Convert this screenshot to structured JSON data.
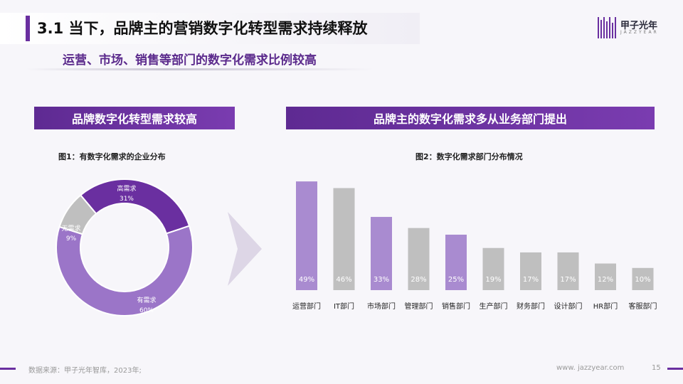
{
  "header": {
    "title": "3.1 当下，品牌主的营销数字化转型需求持续释放",
    "subtitle": "运营、市场、销售等部门的数字化需求比例较高"
  },
  "logo": {
    "name": "甲子光年",
    "tagline": "JAZZYEAR"
  },
  "left_panel": {
    "header": "品牌数字化转型需求较高",
    "figure_title": "图1：有数字化需求的企业分布"
  },
  "right_panel": {
    "header": "品牌主的数字化需求多从业务部门提出",
    "figure_title": "图2：数字化需求部门分布情况"
  },
  "colors": {
    "accent": "#6a2fa0",
    "dark_purple": "#6a2fa0",
    "mid_purple": "#9b75c8",
    "light_purple": "#a98bd0",
    "gray": "#bfbfbf"
  },
  "chart_data": [
    {
      "type": "pie",
      "variant": "donut",
      "title": "图1：有数字化需求的企业分布",
      "slices": [
        {
          "label": "高需求",
          "value": 31,
          "display": "31%",
          "color": "#6a2fa0"
        },
        {
          "label": "有需求",
          "value": 60,
          "display": "60%",
          "color": "#9b75c8"
        },
        {
          "label": "无需求",
          "value": 9,
          "display": "9%",
          "color": "#bfbfbf"
        }
      ]
    },
    {
      "type": "bar",
      "title": "图2：数字化需求部门分布情况",
      "categories": [
        "运营部门",
        "IT部门",
        "市场部门",
        "管理部门",
        "销售部门",
        "生产部门",
        "财务部门",
        "设计部门",
        "HR部门",
        "客服部门"
      ],
      "values": [
        49,
        46,
        33,
        28,
        25,
        19,
        17,
        17,
        12,
        10
      ],
      "labels": [
        "49%",
        "46%",
        "33%",
        "28%",
        "25%",
        "19%",
        "17%",
        "17%",
        "12%",
        "10%"
      ],
      "highlighted": [
        true,
        false,
        true,
        false,
        true,
        false,
        false,
        false,
        false,
        false
      ],
      "ylim": [
        0,
        50
      ],
      "grid": false,
      "legend": "none"
    }
  ],
  "footer": {
    "source": "数据来源：甲子光年智库，2023年;",
    "url": "www. jazzyear.com",
    "page": "15"
  }
}
